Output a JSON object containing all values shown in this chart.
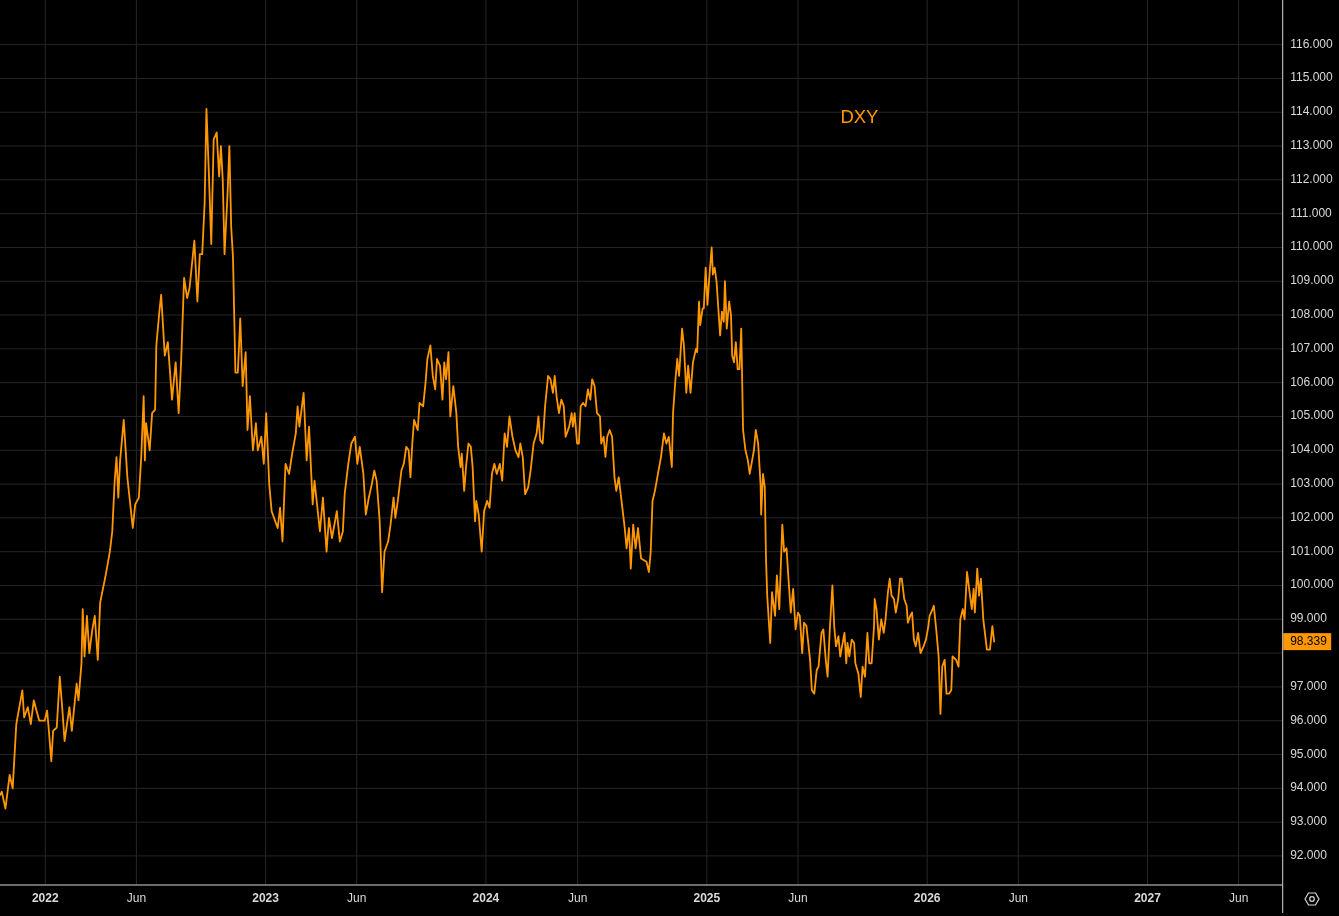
{
  "chart_data": {
    "type": "line",
    "x": [
      "2021-10-18",
      "2021-10-21",
      "2021-10-27",
      "2021-11-03",
      "2021-11-08",
      "2021-11-14",
      "2021-11-24",
      "2021-11-27",
      "2021-12-03",
      "2021-12-08",
      "2021-12-13",
      "2021-12-22",
      "2021-12-31",
      "2022-01-04",
      "2022-01-07",
      "2022-01-11",
      "2022-01-14",
      "2022-01-20",
      "2022-01-25",
      "2022-01-29",
      "2022-02-02",
      "2022-02-10",
      "2022-02-14",
      "2022-02-22",
      "2022-02-25",
      "2022-03-02",
      "2022-03-04",
      "2022-03-07",
      "2022-03-11",
      "2022-03-15",
      "2022-03-20",
      "2022-03-24",
      "2022-03-29",
      "2022-04-02",
      "2022-04-11",
      "2022-04-18",
      "2022-04-22",
      "2022-04-26",
      "2022-04-29",
      "2022-05-02",
      "2022-05-05",
      "2022-05-11",
      "2022-05-17",
      "2022-05-26",
      "2022-05-30",
      "2022-06-05",
      "2022-06-09",
      "2022-06-13",
      "2022-06-15",
      "2022-06-17",
      "2022-06-23",
      "2022-06-27",
      "2022-07-02",
      "2022-07-04",
      "2022-07-09",
      "2022-07-12",
      "2022-07-18",
      "2022-07-23",
      "2022-07-30",
      "2022-08-05",
      "2022-08-10",
      "2022-08-14",
      "2022-08-19",
      "2022-08-24",
      "2022-08-28",
      "2022-09-05",
      "2022-09-10",
      "2022-09-14",
      "2022-09-18",
      "2022-09-22",
      "2022-09-25",
      "2022-09-29",
      "2022-10-03",
      "2022-10-07",
      "2022-10-12",
      "2022-10-16",
      "2022-10-19",
      "2022-10-22",
      "2022-10-25",
      "2022-10-30",
      "2022-11-02",
      "2022-11-05",
      "2022-11-08",
      "2022-11-12",
      "2022-11-16",
      "2022-11-20",
      "2022-11-24",
      "2022-11-29",
      "2022-12-02",
      "2022-12-06",
      "2022-12-11",
      "2022-12-16",
      "2022-12-19",
      "2022-12-25",
      "2022-12-29",
      "2023-01-02",
      "2023-01-07",
      "2023-01-11",
      "2023-01-21",
      "2023-01-25",
      "2023-01-29",
      "2023-02-03",
      "2023-02-09",
      "2023-02-14",
      "2023-02-20",
      "2023-02-23",
      "2023-02-26",
      "2023-03-05",
      "2023-03-10",
      "2023-03-14",
      "2023-03-20",
      "2023-03-23",
      "2023-04-01",
      "2023-04-06",
      "2023-04-12",
      "2023-04-16",
      "2023-04-21",
      "2023-04-26",
      "2023-04-29",
      "2023-05-04",
      "2023-05-09",
      "2023-05-12",
      "2023-05-18",
      "2023-05-23",
      "2023-05-29",
      "2023-06-02",
      "2023-06-06",
      "2023-06-12",
      "2023-06-16",
      "2023-06-21",
      "2023-06-26",
      "2023-06-30",
      "2023-07-04",
      "2023-07-09",
      "2023-07-13",
      "2023-07-17",
      "2023-07-23",
      "2023-07-27",
      "2023-08-01",
      "2023-08-04",
      "2023-08-08",
      "2023-08-14",
      "2023-08-18",
      "2023-08-22",
      "2023-08-26",
      "2023-08-29",
      "2023-09-01",
      "2023-09-04",
      "2023-09-10",
      "2023-09-13",
      "2023-09-19",
      "2023-09-23",
      "2023-09-26",
      "2023-10-01",
      "2023-10-05",
      "2023-10-09",
      "2023-10-12",
      "2023-10-17",
      "2023-10-21",
      "2023-10-24",
      "2023-10-27",
      "2023-10-31",
      "2023-11-03",
      "2023-11-08",
      "2023-11-13",
      "2023-11-16",
      "2023-11-20",
      "2023-11-22",
      "2023-11-26",
      "2023-11-29",
      "2023-12-03",
      "2023-12-07",
      "2023-12-10",
      "2023-12-14",
      "2023-12-16",
      "2023-12-20",
      "2023-12-25",
      "2023-12-29",
      "2024-01-03",
      "2024-01-07",
      "2024-01-11",
      "2024-01-15",
      "2024-01-19",
      "2024-01-24",
      "2024-01-28",
      "2024-02-01",
      "2024-02-05",
      "2024-02-09",
      "2024-02-14",
      "2024-02-19",
      "2024-02-24",
      "2024-02-27",
      "2024-03-02",
      "2024-03-06",
      "2024-03-11",
      "2024-03-15",
      "2024-03-20",
      "2024-03-25",
      "2024-03-28",
      "2024-03-31",
      "2024-04-04",
      "2024-04-08",
      "2024-04-13",
      "2024-04-17",
      "2024-04-21",
      "2024-04-24",
      "2024-04-27",
      "2024-05-01",
      "2024-05-05",
      "2024-05-09",
      "2024-05-12",
      "2024-05-18",
      "2024-05-22",
      "2024-05-24",
      "2024-05-27",
      "2024-05-31",
      "2024-06-03",
      "2024-06-06",
      "2024-06-10",
      "2024-06-14",
      "2024-06-18",
      "2024-06-22",
      "2024-06-25",
      "2024-06-29",
      "2024-07-03",
      "2024-07-08",
      "2024-07-10",
      "2024-07-14",
      "2024-07-17",
      "2024-07-20",
      "2024-07-24",
      "2024-07-28",
      "2024-08-01",
      "2024-08-04",
      "2024-08-08",
      "2024-08-12",
      "2024-08-18",
      "2024-08-21",
      "2024-08-25",
      "2024-08-28",
      "2024-09-01",
      "2024-09-05",
      "2024-09-09",
      "2024-09-14",
      "2024-09-23",
      "2024-09-27",
      "2024-09-30",
      "2024-10-03",
      "2024-10-07",
      "2024-10-12",
      "2024-10-17",
      "2024-10-22",
      "2024-10-26",
      "2024-10-30",
      "2024-11-04",
      "2024-11-06",
      "2024-11-10",
      "2024-11-13",
      "2024-11-16",
      "2024-11-21",
      "2024-11-24",
      "2024-11-28",
      "2024-12-01",
      "2024-12-05",
      "2024-12-09",
      "2024-12-14",
      "2024-12-16",
      "2024-12-19",
      "2024-12-21",
      "2024-12-25",
      "2024-12-27",
      "2024-12-30",
      "2025-01-02",
      "2025-01-05",
      "2025-01-09",
      "2025-01-11",
      "2025-01-14",
      "2025-01-17",
      "2025-01-20",
      "2025-01-23",
      "2025-01-26",
      "2025-01-29",
      "2025-01-31",
      "2025-02-03",
      "2025-02-07",
      "2025-02-10",
      "2025-02-12",
      "2025-02-15",
      "2025-02-18",
      "2025-02-21",
      "2025-02-24",
      "2025-02-27",
      "2025-03-02",
      "2025-03-06",
      "2025-03-10",
      "2025-03-13",
      "2025-03-16",
      "2025-03-20",
      "2025-03-23",
      "2025-03-27",
      "2025-03-31",
      "2025-04-01",
      "2025-04-04",
      "2025-04-07",
      "2025-04-09",
      "2025-04-11",
      "2025-04-16",
      "2025-04-19",
      "2025-04-24",
      "2025-04-27",
      "2025-05-01",
      "2025-05-06",
      "2025-05-09",
      "2025-05-13",
      "2025-05-17",
      "2025-05-20",
      "2025-05-24",
      "2025-05-28",
      "2025-06-01",
      "2025-06-04",
      "2025-06-08",
      "2025-06-11",
      "2025-06-15",
      "2025-06-21",
      "2025-06-24",
      "2025-06-28",
      "2025-07-02",
      "2025-07-05",
      "2025-07-10",
      "2025-07-13",
      "2025-07-17",
      "2025-07-20",
      "2025-07-24",
      "2025-07-28",
      "2025-07-31",
      "2025-08-03",
      "2025-08-07",
      "2025-08-10",
      "2025-08-13",
      "2025-08-17",
      "2025-08-20",
      "2025-08-22",
      "2025-08-25",
      "2025-08-29",
      "2025-09-02",
      "2025-09-04",
      "2025-09-09",
      "2025-09-13",
      "2025-09-16",
      "2025-09-20",
      "2025-09-24",
      "2025-09-27",
      "2025-10-01",
      "2025-10-05",
      "2025-10-06",
      "2025-10-09",
      "2025-10-13",
      "2025-10-17",
      "2025-10-21",
      "2025-10-24",
      "2025-10-28",
      "2025-10-31",
      "2025-11-03",
      "2025-11-07",
      "2025-11-10",
      "2025-11-14",
      "2025-11-17",
      "2025-11-20",
      "2025-11-24",
      "2025-11-28",
      "2025-11-30",
      "2025-12-04",
      "2025-12-07",
      "2025-12-10",
      "2025-12-13",
      "2025-12-17",
      "2025-12-21",
      "2025-12-26",
      "2025-12-30",
      "2026-01-03",
      "2026-01-05",
      "2026-01-10",
      "2026-01-12",
      "2026-01-16",
      "2026-01-20",
      "2026-01-23",
      "2026-01-26",
      "2026-01-30",
      "2026-02-02",
      "2026-02-06",
      "2026-02-10",
      "2026-02-12",
      "2026-02-18",
      "2026-02-22",
      "2026-02-25",
      "2026-03-01",
      "2026-03-04",
      "2026-03-08",
      "2026-03-13",
      "2026-03-16",
      "2026-03-19",
      "2026-03-21",
      "2026-03-25",
      "2026-03-28",
      "2026-03-31",
      "2026-04-04",
      "2026-04-10",
      "2026-04-15",
      "2026-04-19",
      "2026-04-22"
    ],
    "series": [
      {
        "name": "DXY",
        "color": "#ff9800",
        "values": [
          93.8,
          93.9,
          93.4,
          94.4,
          94.0,
          95.9,
          96.9,
          96.1,
          96.4,
          95.9,
          96.6,
          96.0,
          96.0,
          96.3,
          95.7,
          94.8,
          95.7,
          95.8,
          97.3,
          96.4,
          95.4,
          96.4,
          95.7,
          97.1,
          96.6,
          97.7,
          99.3,
          97.9,
          99.1,
          98.0,
          98.7,
          99.1,
          97.8,
          99.5,
          100.3,
          101.0,
          101.6,
          103.1,
          103.8,
          102.6,
          103.7,
          104.9,
          103.2,
          101.7,
          102.4,
          102.6,
          103.8,
          105.6,
          103.7,
          104.8,
          104.0,
          105.1,
          105.2,
          107.1,
          108.1,
          108.6,
          106.8,
          107.2,
          105.5,
          106.6,
          105.1,
          106.6,
          109.1,
          108.5,
          108.8,
          110.2,
          108.4,
          109.8,
          109.8,
          111.3,
          114.1,
          112.2,
          110.1,
          113.2,
          113.4,
          112.1,
          113.0,
          112.0,
          109.8,
          111.6,
          113.0,
          110.6,
          109.7,
          106.3,
          106.3,
          107.9,
          105.9,
          106.9,
          104.6,
          105.6,
          104.0,
          104.8,
          104.0,
          104.4,
          103.6,
          105.1,
          103.0,
          102.2,
          101.7,
          102.3,
          101.3,
          103.6,
          103.3,
          103.9,
          104.5,
          105.3,
          104.7,
          105.7,
          103.7,
          104.7,
          102.4,
          103.1,
          101.6,
          102.6,
          101.0,
          102.0,
          101.4,
          101.9,
          102.2,
          101.3,
          101.6,
          102.7,
          103.6,
          104.2,
          104.4,
          103.6,
          104.1,
          103.3,
          102.1,
          102.6,
          103.0,
          103.4,
          103.1,
          101.9,
          99.8,
          101.0,
          101.3,
          101.8,
          102.6,
          102.0,
          102.5,
          103.4,
          103.6,
          104.1,
          104.0,
          103.2,
          104.2,
          104.9,
          104.6,
          105.4,
          105.3,
          106.0,
          106.7,
          107.1,
          106.2,
          105.8,
          106.7,
          106.5,
          105.5,
          106.6,
          106.1,
          106.9,
          105.0,
          105.9,
          105.1,
          104.1,
          103.5,
          103.9,
          102.8,
          103.5,
          104.2,
          104.1,
          103.5,
          101.9,
          102.5,
          102.1,
          101.0,
          102.2,
          102.5,
          102.3,
          103.3,
          103.6,
          103.3,
          103.6,
          103.1,
          104.5,
          104.1,
          105.0,
          104.4,
          104.0,
          103.8,
          104.2,
          103.8,
          102.7,
          102.9,
          103.4,
          104.2,
          104.5,
          105.0,
          104.3,
          104.2,
          105.3,
          106.2,
          106.1,
          105.7,
          106.2,
          105.6,
          105.1,
          105.5,
          105.3,
          104.4,
          104.7,
          105.1,
          104.7,
          105.1,
          104.2,
          104.2,
          105.3,
          105.4,
          105.3,
          105.8,
          105.5,
          106.1,
          105.9,
          105.1,
          105.0,
          104.2,
          104.4,
          103.8,
          104.4,
          104.6,
          104.4,
          103.2,
          102.8,
          103.2,
          102.6,
          101.7,
          101.1,
          101.7,
          100.5,
          101.8,
          101.1,
          101.7,
          100.8,
          100.7,
          100.4,
          101.0,
          102.5,
          102.8,
          103.3,
          103.8,
          104.5,
          104.2,
          104.4,
          103.5,
          105.1,
          106.1,
          106.7,
          106.2,
          107.6,
          107.1,
          105.7,
          106.5,
          105.7,
          106.6,
          107.0,
          106.9,
          108.4,
          107.7,
          108.2,
          108.2,
          109.4,
          108.3,
          109.1,
          110.0,
          109.2,
          109.4,
          109.0,
          108.2,
          107.4,
          108.1,
          107.8,
          109.0,
          107.6,
          108.4,
          108.0,
          106.8,
          106.6,
          107.2,
          106.4,
          106.4,
          107.6,
          104.6,
          104.0,
          103.7,
          103.3,
          103.6,
          104.0,
          104.6,
          104.2,
          103.0,
          102.1,
          103.3,
          102.9,
          100.8,
          99.7,
          98.3,
          99.8,
          99.1,
          100.3,
          99.3,
          101.8,
          101.0,
          101.1,
          100.0,
          99.2,
          99.9,
          98.7,
          99.2,
          99.1,
          98.0,
          98.9,
          98.8,
          97.8,
          96.9,
          96.8,
          97.5,
          97.6,
          98.6,
          98.7,
          97.8,
          97.3,
          98.8,
          100.0,
          98.8,
          98.2,
          98.5,
          97.9,
          98.2,
          98.6,
          97.7,
          98.3,
          97.9,
          98.4,
          98.3,
          97.7,
          97.4,
          96.7,
          97.6,
          97.3,
          98.6,
          97.7,
          97.7,
          98.8,
          99.6,
          99.3,
          98.4,
          99.0,
          98.6,
          99.0,
          99.8,
          100.2,
          99.7,
          99.6,
          99.2,
          99.6,
          100.2,
          100.2,
          99.6,
          99.4,
          98.9,
          99.1,
          99.2,
          98.4,
          98.2,
          98.6,
          98.0,
          98.2,
          98.4,
          98.8,
          99.1,
          99.3,
          99.4,
          98.7,
          97.9,
          96.2,
          97.6,
          97.8,
          96.8,
          96.8,
          96.9,
          97.9,
          97.8,
          97.6,
          99.0,
          99.3,
          99.0,
          100.4,
          99.7,
          99.3,
          99.9,
          99.2,
          100.5,
          99.7,
          100.2,
          99.0,
          98.1,
          98.1,
          98.8,
          98.339
        ]
      }
    ],
    "xlim": [
      "2021-10-18",
      "2027-08-13"
    ],
    "xticks": [
      {
        "value": "2022-01-01",
        "label": "2022"
      },
      {
        "value": "2022-06-01",
        "label": "Jun"
      },
      {
        "value": "2023-01-01",
        "label": "2023"
      },
      {
        "value": "2023-06-01",
        "label": "Jun"
      },
      {
        "value": "2024-01-01",
        "label": "2024"
      },
      {
        "value": "2024-06-01",
        "label": "Jun"
      },
      {
        "value": "2025-01-01",
        "label": "2025"
      },
      {
        "value": "2025-06-01",
        "label": "Jun"
      },
      {
        "value": "2026-01-01",
        "label": "2026"
      },
      {
        "value": "2026-06-01",
        "label": "Jun"
      },
      {
        "value": "2027-01-01",
        "label": "2027"
      },
      {
        "value": "2027-06-01",
        "label": "Jun"
      }
    ],
    "ylim": [
      91.14,
      117.32
    ],
    "yticks": [
      {
        "value": 92,
        "label": "92.000"
      },
      {
        "value": 93,
        "label": "93.000"
      },
      {
        "value": 94,
        "label": "94.000"
      },
      {
        "value": 95,
        "label": "95.000"
      },
      {
        "value": 96,
        "label": "96.000"
      },
      {
        "value": 97,
        "label": "97.000"
      },
      {
        "value": 98,
        "label": null
      },
      {
        "value": 99,
        "label": "99.000"
      },
      {
        "value": 100,
        "label": "100.000"
      },
      {
        "value": 101,
        "label": "101.000"
      },
      {
        "value": 102,
        "label": "102.000"
      },
      {
        "value": 103,
        "label": "103.000"
      },
      {
        "value": 104,
        "label": "104.000"
      },
      {
        "value": 105,
        "label": "105.000"
      },
      {
        "value": 106,
        "label": "106.000"
      },
      {
        "value": 107,
        "label": "107.000"
      },
      {
        "value": 108,
        "label": "108.000"
      },
      {
        "value": 109,
        "label": "109.000"
      },
      {
        "value": 110,
        "label": "110.000"
      },
      {
        "value": 111,
        "label": "111.000"
      },
      {
        "value": 112,
        "label": "112.000"
      },
      {
        "value": 113,
        "label": "113.000"
      },
      {
        "value": 114,
        "label": "114.000"
      },
      {
        "value": 115,
        "label": "115.000"
      },
      {
        "value": 116,
        "label": "116.000"
      }
    ],
    "grid": true,
    "legend": "top right",
    "annotations": [
      "98.339"
    ]
  }
}
